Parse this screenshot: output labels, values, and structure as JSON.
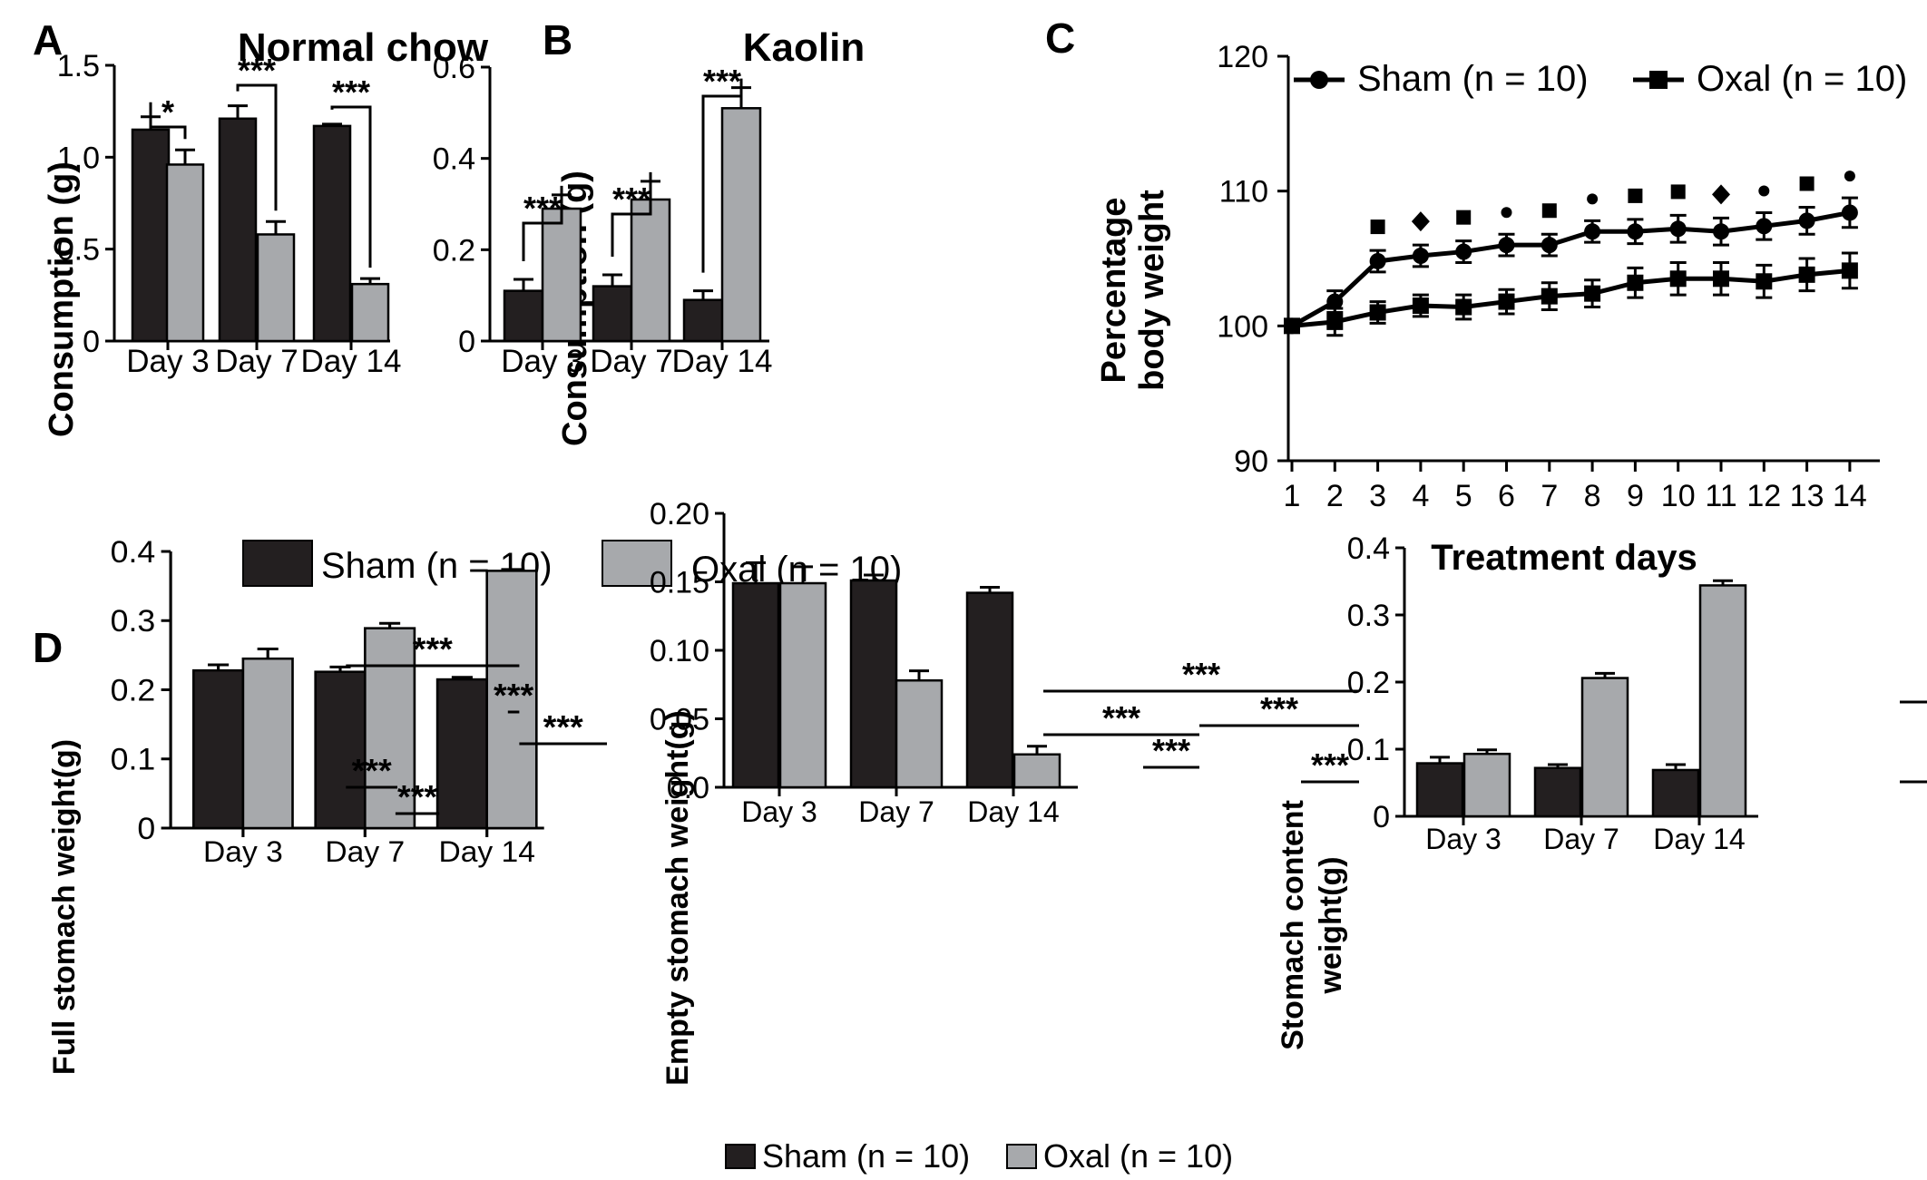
{
  "colors": {
    "sham": "#231f20",
    "oxal": "#a7a9ac",
    "axis": "#000000"
  },
  "legend_top": {
    "sham": "Sham (n = 10)",
    "oxal": "Oxal (n = 10)"
  },
  "chart_data": [
    {
      "id": "A",
      "panel_label": "A",
      "type": "bar",
      "title": "Normal chow",
      "ylabel": "Consumption (g)",
      "ylim": [
        0,
        1.5
      ],
      "yticks": [
        0,
        0.5,
        1.0,
        1.5
      ],
      "ytick_labels": [
        "0",
        "0.5",
        "1.0",
        "1.5"
      ],
      "categories": [
        "Day 3",
        "Day 7",
        "Day 14"
      ],
      "series": [
        {
          "name": "Sham (n = 10)",
          "values": [
            1.15,
            1.21,
            1.17
          ],
          "errors": [
            0.07,
            0.07,
            0.01
          ]
        },
        {
          "name": "Oxal (n = 10)",
          "values": [
            0.96,
            0.58,
            0.31
          ],
          "errors": [
            0.08,
            0.07,
            0.03
          ]
        }
      ],
      "significance": [
        {
          "label": "*",
          "type": "bracket",
          "category": 0
        },
        {
          "label": "***",
          "type": "bracket",
          "category": 1
        },
        {
          "label": "***",
          "type": "bracket",
          "category": 2
        }
      ]
    },
    {
      "id": "B",
      "panel_label": "B",
      "type": "bar",
      "title": "Kaolin",
      "ylabel": "Consumption (g)",
      "ylim": [
        0,
        0.6
      ],
      "yticks": [
        0,
        0.2,
        0.4,
        0.6
      ],
      "ytick_labels": [
        "0",
        "0.2",
        "0.4",
        "0.6"
      ],
      "categories": [
        "Day 3",
        "Day 7",
        "Day 14"
      ],
      "series": [
        {
          "name": "Sham (n = 10)",
          "values": [
            0.11,
            0.12,
            0.09
          ],
          "errors": [
            0.025,
            0.025,
            0.02
          ]
        },
        {
          "name": "Oxal (n = 10)",
          "values": [
            0.29,
            0.31,
            0.51
          ],
          "errors": [
            0.03,
            0.04,
            0.045
          ]
        }
      ],
      "significance": [
        {
          "label": "***",
          "type": "bracket",
          "category": 0
        },
        {
          "label": "***",
          "type": "bracket",
          "category": 1
        },
        {
          "label": "***",
          "type": "bracket",
          "category": 2
        }
      ]
    },
    {
      "id": "C",
      "panel_label": "C",
      "type": "line",
      "ylabel": [
        "Percentage",
        "body weight"
      ],
      "xlabel": "Treatment days",
      "ylim": [
        90,
        120
      ],
      "yticks": [
        90,
        100,
        110,
        120
      ],
      "ytick_labels": [
        "90",
        "100",
        "110",
        "120"
      ],
      "x": [
        1,
        2,
        3,
        4,
        5,
        6,
        7,
        8,
        9,
        10,
        11,
        12,
        13,
        14
      ],
      "xtick_labels": [
        "1",
        "2",
        "3",
        "4",
        "5",
        "6",
        "7",
        "8",
        "9",
        "10",
        "11",
        "12",
        "13",
        "14"
      ],
      "series": [
        {
          "name": "Sham (n = 10)",
          "marker": "circle",
          "values": [
            100,
            101.8,
            104.8,
            105.2,
            105.5,
            106.0,
            106.0,
            107.0,
            107.0,
            107.2,
            107.0,
            107.4,
            107.8,
            108.4
          ],
          "errors": [
            0.2,
            0.8,
            0.8,
            0.8,
            0.8,
            0.8,
            0.8,
            0.8,
            0.9,
            1.0,
            1.0,
            1.0,
            1.0,
            1.1
          ]
        },
        {
          "name": "Oxal (n = 10)",
          "marker": "square",
          "values": [
            100,
            100.3,
            101.0,
            101.5,
            101.4,
            101.8,
            102.2,
            102.4,
            103.2,
            103.5,
            103.5,
            103.3,
            103.8,
            104.1
          ],
          "errors": [
            0.2,
            1.0,
            0.8,
            0.8,
            0.9,
            0.9,
            1.0,
            1.0,
            1.1,
            1.2,
            1.2,
            1.2,
            1.2,
            1.3
          ]
        }
      ],
      "markers_above": [
        {
          "x": 3,
          "symbol": "square"
        },
        {
          "x": 4,
          "symbol": "diamond"
        },
        {
          "x": 5,
          "symbol": "square"
        },
        {
          "x": 6,
          "symbol": "dot"
        },
        {
          "x": 7,
          "symbol": "square"
        },
        {
          "x": 8,
          "symbol": "dot"
        },
        {
          "x": 9,
          "symbol": "square"
        },
        {
          "x": 10,
          "symbol": "square"
        },
        {
          "x": 11,
          "symbol": "diamond"
        },
        {
          "x": 12,
          "symbol": "dot"
        },
        {
          "x": 13,
          "symbol": "square"
        },
        {
          "x": 14,
          "symbol": "dot"
        }
      ]
    },
    {
      "id": "D1",
      "panel_label": "D",
      "type": "bar",
      "ylabel": "Full stomach weight(g)",
      "ylim": [
        0,
        0.4
      ],
      "yticks": [
        0,
        0.1,
        0.2,
        0.3,
        0.4
      ],
      "ytick_labels": [
        "0",
        "0.1",
        "0.2",
        "0.3",
        "0.4"
      ],
      "categories": [
        "Day 3",
        "Day 7",
        "Day 14"
      ],
      "series": [
        {
          "name": "Sham (n = 10)",
          "values": [
            0.228,
            0.226,
            0.215
          ],
          "errors": [
            0.008,
            0.007,
            0.003
          ]
        },
        {
          "name": "Oxal (n = 10)",
          "values": [
            0.245,
            0.289,
            0.372
          ],
          "errors": [
            0.014,
            0.007,
            0.002
          ]
        }
      ],
      "significance": [
        {
          "label": "***",
          "type": "line",
          "from": [
            1,
            1
          ],
          "to": [
            2,
            1
          ]
        },
        {
          "label": "***",
          "type": "line",
          "from": [
            1,
            1
          ],
          "to": [
            1,
            1
          ]
        },
        {
          "label": "***",
          "type": "line",
          "from": [
            0,
            1
          ],
          "to": [
            1,
            1
          ]
        },
        {
          "label": "***",
          "type": "line",
          "from": [
            2,
            1
          ],
          "to": [
            2,
            1
          ]
        },
        {
          "label": "***",
          "type": "line",
          "from": [
            1,
            1
          ],
          "to": [
            2,
            1
          ]
        },
        {
          "label": "***",
          "type": "line",
          "from": [
            0,
            1
          ],
          "to": [
            2,
            1
          ]
        }
      ]
    },
    {
      "id": "D2",
      "type": "bar",
      "ylabel": "Empty stomach weight(g)",
      "ylim": [
        0,
        0.2
      ],
      "yticks": [
        0,
        0.05,
        0.1,
        0.15,
        0.2
      ],
      "ytick_labels": [
        "0.0",
        "0.05",
        "0.10",
        "0.15",
        "0.20"
      ],
      "categories": [
        "Day 3",
        "Day 7",
        "Day 14"
      ],
      "series": [
        {
          "name": "Sham (n = 10)",
          "values": [
            0.149,
            0.151,
            0.142
          ],
          "errors": [
            0.015,
            0.004,
            0.004
          ]
        },
        {
          "name": "Oxal (n = 10)",
          "values": [
            0.149,
            0.078,
            0.024
          ],
          "errors": [
            0.012,
            0.007,
            0.006
          ]
        }
      ],
      "legend": {
        "sham": "Sham (n = 10)",
        "oxal": "Oxal (n = 10)"
      }
    },
    {
      "id": "D3",
      "type": "bar",
      "ylabel": [
        "Stomach content",
        "weight(g)"
      ],
      "ylim": [
        0,
        0.4
      ],
      "yticks": [
        0,
        0.1,
        0.2,
        0.3,
        0.4
      ],
      "ytick_labels": [
        "0",
        "0.1",
        "0.2",
        "0.3",
        "0.4"
      ],
      "categories": [
        "Day 3",
        "Day 7",
        "Day 14"
      ],
      "series": [
        {
          "name": "Sham (n = 10)",
          "values": [
            0.079,
            0.072,
            0.069
          ],
          "errors": [
            0.009,
            0.005,
            0.008
          ]
        },
        {
          "name": "Oxal (n = 10)",
          "values": [
            0.093,
            0.206,
            0.344
          ],
          "errors": [
            0.006,
            0.007,
            0.007
          ]
        }
      ]
    }
  ]
}
